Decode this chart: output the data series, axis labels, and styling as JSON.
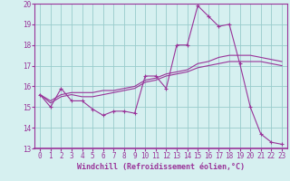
{
  "title": "",
  "xlabel": "Windchill (Refroidissement éolien,°C)",
  "ylabel": "",
  "bg_color": "#d6f0f0",
  "line_color": "#993399",
  "grid_color": "#99cccc",
  "xlim": [
    -0.5,
    23.5
  ],
  "ylim": [
    13,
    20
  ],
  "yticks": [
    13,
    14,
    15,
    16,
    17,
    18,
    19,
    20
  ],
  "xticks": [
    0,
    1,
    2,
    3,
    4,
    5,
    6,
    7,
    8,
    9,
    10,
    11,
    12,
    13,
    14,
    15,
    16,
    17,
    18,
    19,
    20,
    21,
    22,
    23
  ],
  "line1_x": [
    0,
    1,
    2,
    3,
    4,
    5,
    6,
    7,
    8,
    9,
    10,
    11,
    12,
    13,
    14,
    15,
    16,
    17,
    18,
    19,
    20,
    21,
    22,
    23
  ],
  "line1_y": [
    15.6,
    15.0,
    15.9,
    15.3,
    15.3,
    14.9,
    14.6,
    14.8,
    14.8,
    14.7,
    16.5,
    16.5,
    15.9,
    18.0,
    18.0,
    19.9,
    19.4,
    18.9,
    19.0,
    17.1,
    15.0,
    13.7,
    13.3,
    13.2
  ],
  "line2_x": [
    0,
    1,
    2,
    3,
    4,
    5,
    6,
    7,
    8,
    9,
    10,
    11,
    12,
    13,
    14,
    15,
    16,
    17,
    18,
    19,
    20,
    21,
    22,
    23
  ],
  "line2_y": [
    15.6,
    15.2,
    15.5,
    15.6,
    15.5,
    15.5,
    15.6,
    15.7,
    15.8,
    15.9,
    16.2,
    16.3,
    16.5,
    16.6,
    16.7,
    16.9,
    17.0,
    17.1,
    17.2,
    17.2,
    17.2,
    17.2,
    17.1,
    17.0
  ],
  "line3_x": [
    0,
    1,
    2,
    3,
    4,
    5,
    6,
    7,
    8,
    9,
    10,
    11,
    12,
    13,
    14,
    15,
    16,
    17,
    18,
    19,
    20,
    21,
    22,
    23
  ],
  "line3_y": [
    15.6,
    15.3,
    15.6,
    15.7,
    15.7,
    15.7,
    15.8,
    15.8,
    15.9,
    16.0,
    16.3,
    16.4,
    16.6,
    16.7,
    16.8,
    17.1,
    17.2,
    17.4,
    17.5,
    17.5,
    17.5,
    17.4,
    17.3,
    17.2
  ],
  "xlabel_color": "#993399",
  "xlabel_fontsize": 6.0,
  "tick_fontsize": 5.5,
  "tick_color": "#993399"
}
